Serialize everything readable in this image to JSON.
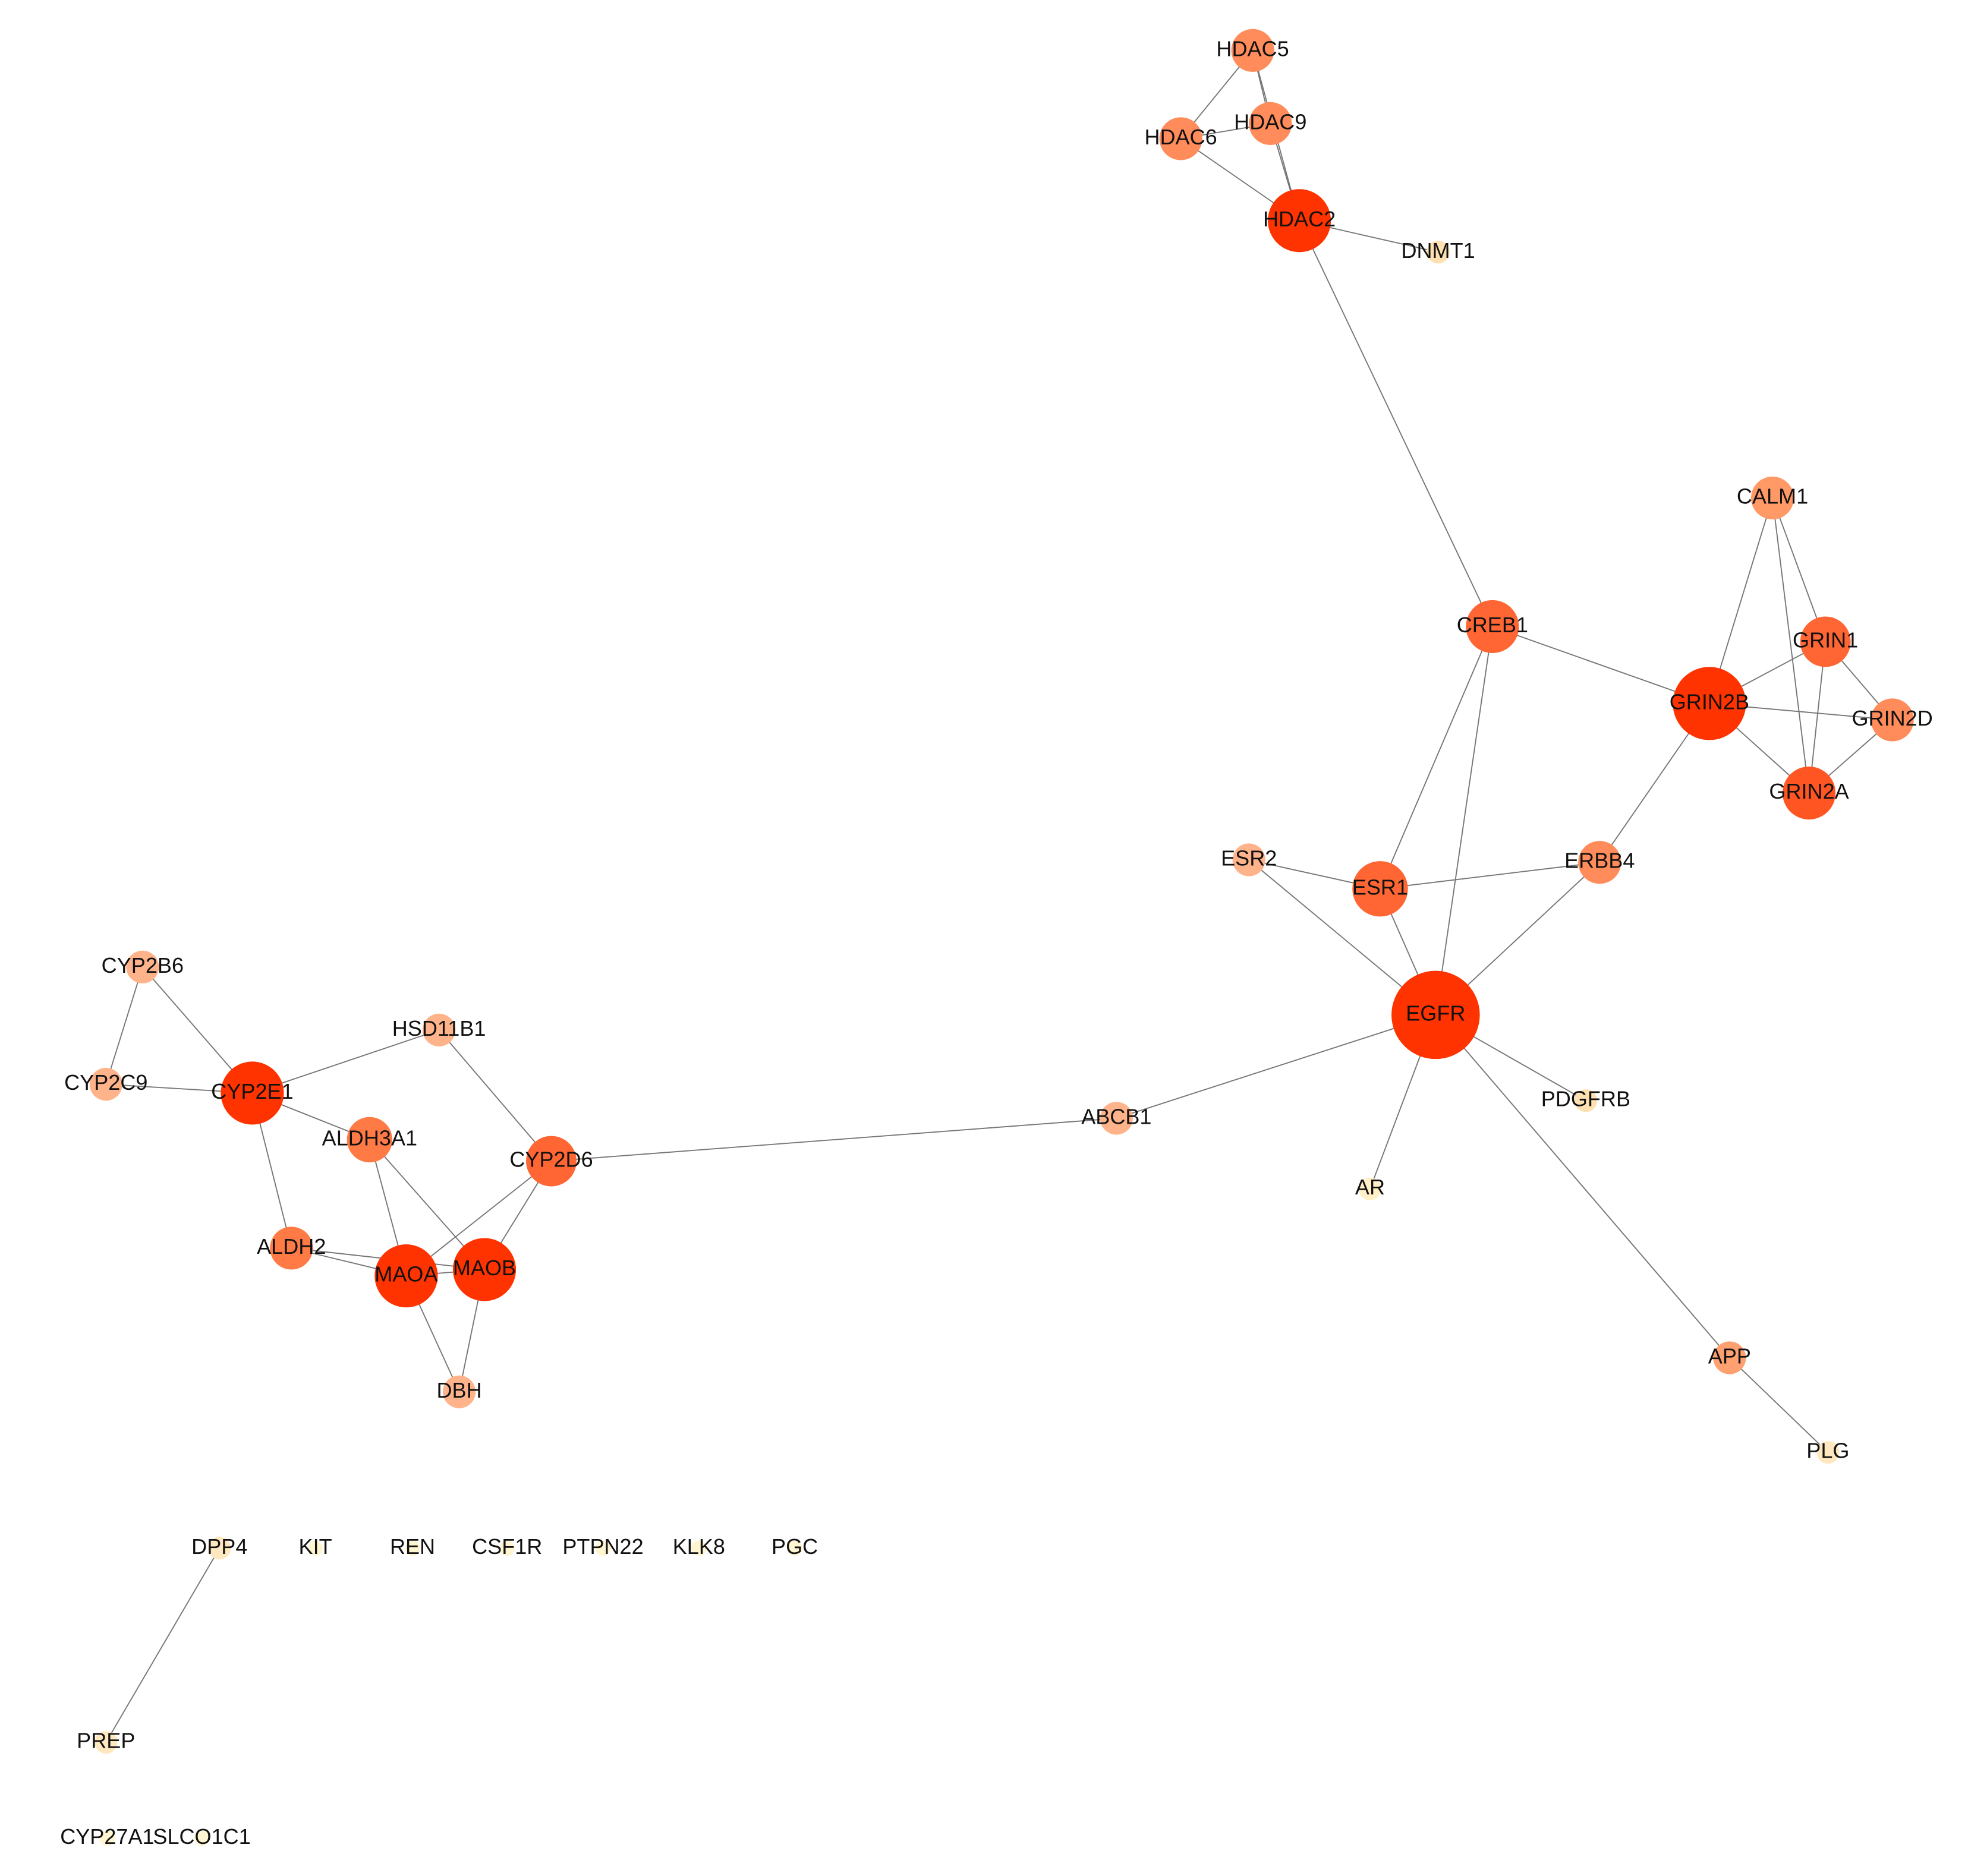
{
  "nodes": [
    {
      "label": "HDAC5"
    },
    {
      "label": "HDAC9"
    },
    {
      "label": "HDAC6"
    },
    {
      "label": "HDAC2"
    },
    {
      "label": "DNMT1"
    },
    {
      "label": "CALM1"
    },
    {
      "label": "CREB1"
    },
    {
      "label": "GRIN1"
    },
    {
      "label": "GRIN2B"
    },
    {
      "label": "GRIN2D"
    },
    {
      "label": "GRIN2A"
    },
    {
      "label": "ESR2"
    },
    {
      "label": "ESR1"
    },
    {
      "label": "ERBB4"
    },
    {
      "label": "EGFR"
    },
    {
      "label": "CYP2B6"
    },
    {
      "label": "HSD11B1"
    },
    {
      "label": "CYP2C9"
    },
    {
      "label": "CYP2E1"
    },
    {
      "label": "PDGFRB"
    },
    {
      "label": "ABCB1"
    },
    {
      "label": "ALDH3A1"
    },
    {
      "label": "CYP2D6"
    },
    {
      "label": "AR"
    },
    {
      "label": "ALDH2"
    },
    {
      "label": "MAOA"
    },
    {
      "label": "MAOB"
    },
    {
      "label": "DBH"
    },
    {
      "label": "APP"
    },
    {
      "label": "PLG"
    },
    {
      "label": "DPP4"
    },
    {
      "label": "KIT"
    },
    {
      "label": "REN"
    },
    {
      "label": "CSF1R"
    },
    {
      "label": "PTPN22"
    },
    {
      "label": "KLK8"
    },
    {
      "label": "PGC"
    },
    {
      "label": "PREP"
    },
    {
      "label": "CYP27A1"
    },
    {
      "label": "SLCO1C1"
    }
  ]
}
